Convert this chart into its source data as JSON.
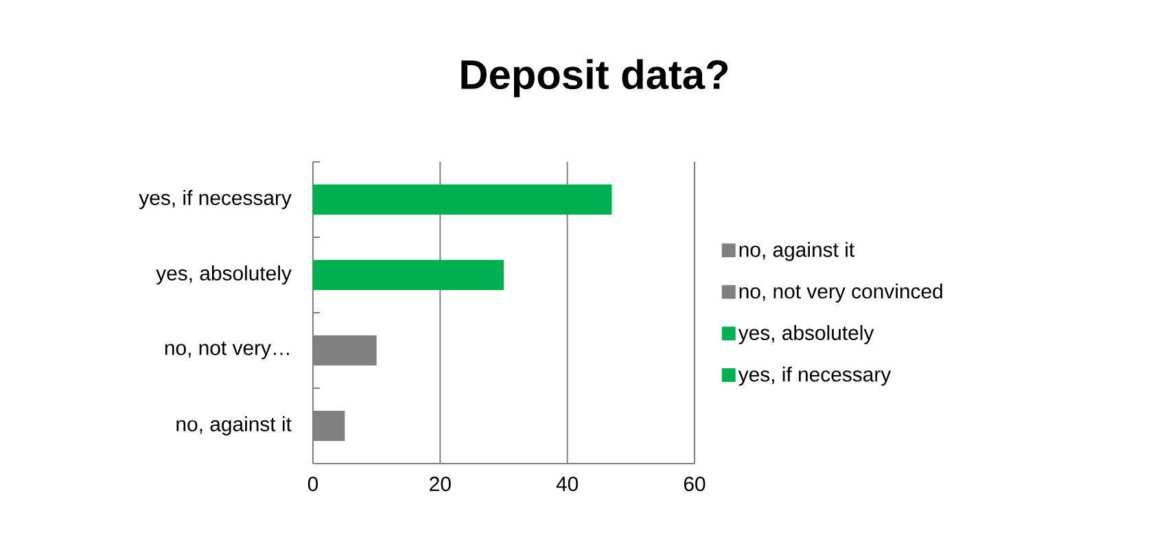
{
  "chart_data": {
    "type": "bar",
    "orientation": "horizontal",
    "stacked": true,
    "title": "Deposit data?",
    "categories": [
      "yes, if necessary",
      "yes, absolutely",
      "no, not very…",
      "no, against it"
    ],
    "series": [
      {
        "name": "no, against it",
        "color": "#808080",
        "values": [
          null,
          null,
          null,
          5
        ]
      },
      {
        "name": "no, not very convinced",
        "color": "#808080",
        "values": [
          null,
          null,
          10,
          null
        ]
      },
      {
        "name": "yes, absolutely",
        "color": "#00b050",
        "values": [
          null,
          30,
          null,
          null
        ]
      },
      {
        "name": "yes, if necessary",
        "color": "#00b050",
        "values": [
          47,
          null,
          null,
          null
        ]
      }
    ],
    "xlim": [
      0,
      60
    ],
    "xticks": [
      0,
      20,
      40,
      60
    ],
    "grid": "x",
    "legend": "right"
  }
}
